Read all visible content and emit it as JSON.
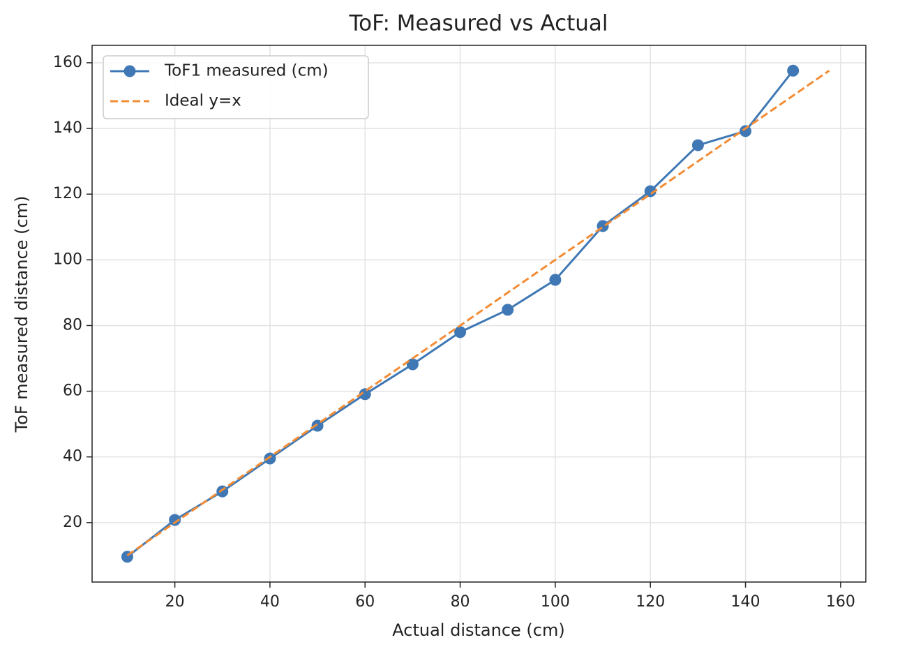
{
  "chart_data": {
    "type": "line",
    "title": "ToF: Measured vs Actual",
    "x_label": "Actual distance (cm)",
    "y_label": "ToF measured distance (cm)",
    "xlim": [
      2.6,
      165.3
    ],
    "ylim": [
      1.9,
      165.3
    ],
    "xticks": [
      20,
      40,
      60,
      80,
      100,
      120,
      140,
      160
    ],
    "yticks": [
      20,
      40,
      60,
      80,
      100,
      120,
      140,
      160
    ],
    "grid": true,
    "legend": "upper left",
    "series": [
      {
        "name": "ToF1 measured (cm)",
        "color": "#3f78b4",
        "dashed": false,
        "markers": true,
        "x": [
          10,
          20,
          30,
          40,
          50,
          60,
          70,
          80,
          90,
          100,
          110,
          120,
          130,
          140,
          150
        ],
        "values": [
          9.6,
          20.8,
          29.5,
          39.5,
          49.5,
          59.1,
          68.2,
          78.0,
          84.8,
          93.9,
          110.3,
          120.9,
          134.9,
          139.2,
          157.6
        ]
      },
      {
        "name": "Ideal y=x",
        "color": "#f28c35",
        "dashed": true,
        "markers": false,
        "x": [
          10,
          157.6
        ],
        "values": [
          10,
          157.6
        ]
      }
    ]
  }
}
